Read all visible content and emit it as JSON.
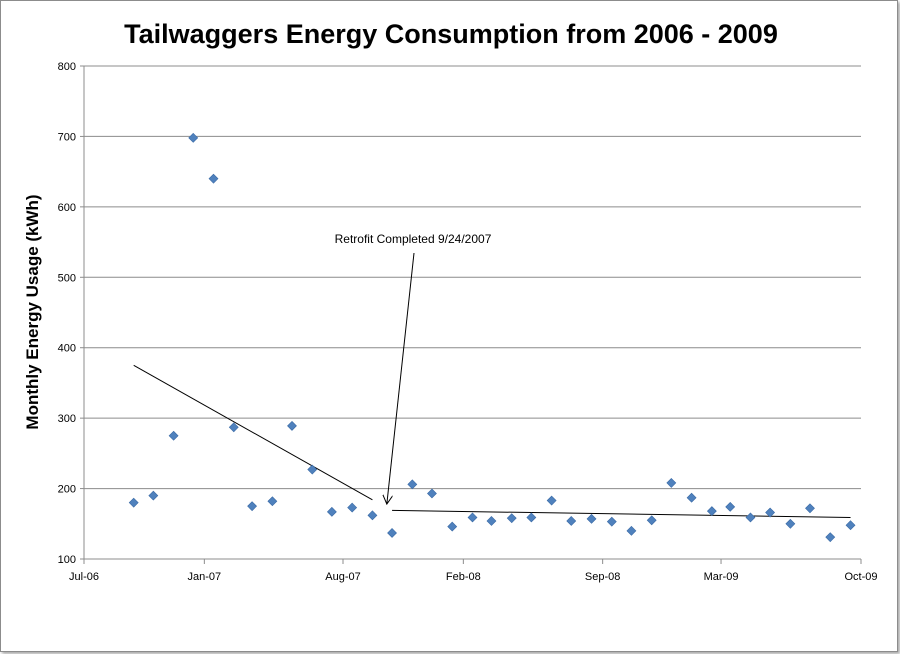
{
  "chart_data": {
    "type": "scatter",
    "title": "Tailwaggers Energy Consumption from 2006 - 2009",
    "xlabel": "",
    "ylabel": "Monthly Energy Usage (kWh)",
    "xlim": [
      "2006-07-01",
      "2009-10-01"
    ],
    "ylim": [
      100,
      800
    ],
    "x_ticks": [
      {
        "date": "2006-07-01",
        "label": "Jul-06"
      },
      {
        "date": "2007-01-01",
        "label": "Jan-07"
      },
      {
        "date": "2007-08-01",
        "label": "Aug-07"
      },
      {
        "date": "2008-02-01",
        "label": "Feb-08"
      },
      {
        "date": "2008-09-01",
        "label": "Sep-08"
      },
      {
        "date": "2009-03-01",
        "label": "Mar-09"
      },
      {
        "date": "2009-10-01",
        "label": "Oct-09"
      }
    ],
    "y_ticks": [
      100,
      200,
      300,
      400,
      500,
      600,
      700,
      800
    ],
    "grid": "horizontal",
    "legend": "none",
    "marker_color": "#4f81bd",
    "points": [
      {
        "x": "2006-09-15",
        "y": 180
      },
      {
        "x": "2006-10-15",
        "y": 190
      },
      {
        "x": "2006-11-15",
        "y": 275
      },
      {
        "x": "2006-12-15",
        "y": 698
      },
      {
        "x": "2007-01-15",
        "y": 640
      },
      {
        "x": "2007-02-15",
        "y": 287
      },
      {
        "x": "2007-03-15",
        "y": 175
      },
      {
        "x": "2007-04-15",
        "y": 182
      },
      {
        "x": "2007-05-15",
        "y": 289
      },
      {
        "x": "2007-06-15",
        "y": 227
      },
      {
        "x": "2007-07-15",
        "y": 167
      },
      {
        "x": "2007-08-15",
        "y": 173
      },
      {
        "x": "2007-09-15",
        "y": 162
      },
      {
        "x": "2007-10-15",
        "y": 137
      },
      {
        "x": "2007-11-15",
        "y": 206
      },
      {
        "x": "2007-12-15",
        "y": 193
      },
      {
        "x": "2008-01-15",
        "y": 146
      },
      {
        "x": "2008-02-15",
        "y": 159
      },
      {
        "x": "2008-03-15",
        "y": 154
      },
      {
        "x": "2008-04-15",
        "y": 158
      },
      {
        "x": "2008-05-15",
        "y": 159
      },
      {
        "x": "2008-06-15",
        "y": 183
      },
      {
        "x": "2008-07-15",
        "y": 154
      },
      {
        "x": "2008-08-15",
        "y": 157
      },
      {
        "x": "2008-09-15",
        "y": 153
      },
      {
        "x": "2008-10-15",
        "y": 140
      },
      {
        "x": "2008-11-15",
        "y": 155
      },
      {
        "x": "2008-12-15",
        "y": 208
      },
      {
        "x": "2009-01-15",
        "y": 187
      },
      {
        "x": "2009-02-15",
        "y": 168
      },
      {
        "x": "2009-03-15",
        "y": 174
      },
      {
        "x": "2009-04-15",
        "y": 159
      },
      {
        "x": "2009-05-15",
        "y": 166
      },
      {
        "x": "2009-06-15",
        "y": 150
      },
      {
        "x": "2009-07-15",
        "y": 172
      },
      {
        "x": "2009-08-15",
        "y": 131
      },
      {
        "x": "2009-09-15",
        "y": 148
      }
    ],
    "trendlines": [
      {
        "from": {
          "x": "2006-09-15",
          "y": 375
        },
        "to": {
          "x": "2007-09-15",
          "y": 184
        }
      },
      {
        "from": {
          "x": "2007-10-15",
          "y": 169
        },
        "to": {
          "x": "2009-09-15",
          "y": 159
        }
      }
    ],
    "annotation": {
      "text": "Retrofit Completed 9/24/2007",
      "arrow_to": {
        "x": "2007-10-07",
        "y": 178
      }
    }
  }
}
